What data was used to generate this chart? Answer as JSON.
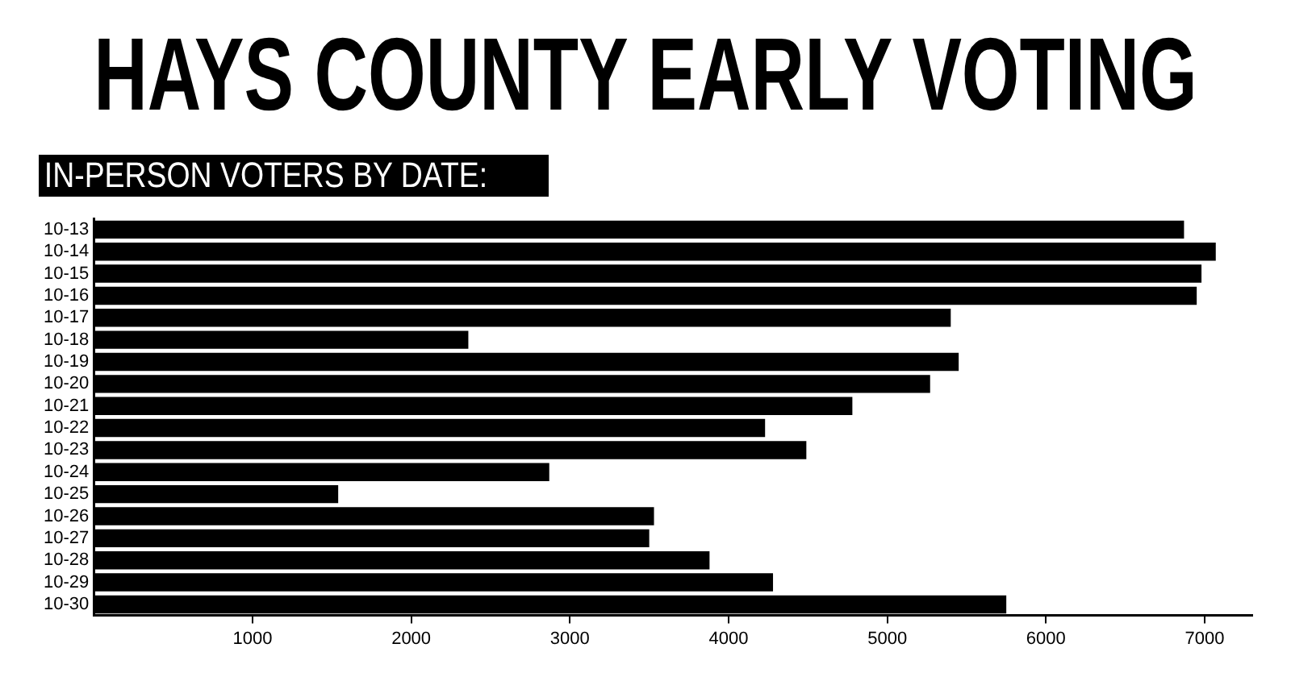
{
  "chart_data": {
    "type": "bar",
    "orientation": "horizontal",
    "title": "HAYS COUNTY EARLY VOTING",
    "subtitle": "IN-PERSON VOTERS BY DATE:",
    "categories": [
      "10-13",
      "10-14",
      "10-15",
      "10-16",
      "10-17",
      "10-18",
      "10-19",
      "10-20",
      "10-21",
      "10-22",
      "10-23",
      "10-24",
      "10-25",
      "10-26",
      "10-27",
      "10-28",
      "10-29",
      "10-30"
    ],
    "values": [
      6870,
      7070,
      6980,
      6950,
      5400,
      2360,
      5450,
      5270,
      4780,
      4230,
      4490,
      2870,
      1540,
      3530,
      3500,
      3880,
      4280,
      5750
    ],
    "color": "#000000",
    "xlim": [
      0,
      7300
    ],
    "xticks": [
      1000,
      2000,
      3000,
      4000,
      5000,
      6000,
      7000
    ]
  }
}
